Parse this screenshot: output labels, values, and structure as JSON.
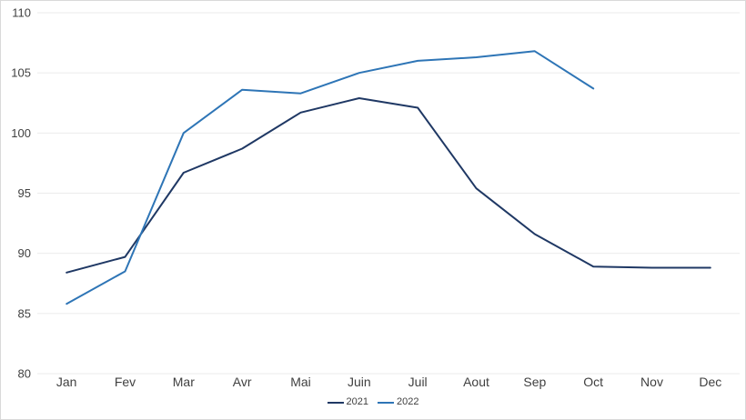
{
  "chart_data": {
    "type": "line",
    "title": "",
    "xlabel": "",
    "ylabel": "",
    "categories": [
      "Jan",
      "Fev",
      "Mar",
      "Avr",
      "Mai",
      "Juin",
      "Juil",
      "Aout",
      "Sep",
      "Oct",
      "Nov",
      "Dec"
    ],
    "series": [
      {
        "name": "2021",
        "color": "#1f3864",
        "values": [
          88.4,
          89.7,
          96.7,
          98.7,
          101.7,
          102.9,
          102.1,
          95.4,
          91.6,
          88.9,
          88.8,
          88.8
        ]
      },
      {
        "name": "2022",
        "color": "#2e75b6",
        "values": [
          85.8,
          88.5,
          100,
          103.6,
          103.3,
          105,
          106,
          106.3,
          106.8,
          103.7,
          null,
          null
        ]
      }
    ],
    "ylim": [
      80,
      110
    ],
    "yticks": [
      80,
      85,
      90,
      95,
      100,
      105,
      110
    ],
    "ytick_step": 5,
    "grid": "horizontal",
    "legend_position": "bottom-center",
    "colors": {
      "grid": "#ebebeb",
      "axis_label": "#404040",
      "background": "#ffffff",
      "border": "#d9d9d9"
    }
  }
}
